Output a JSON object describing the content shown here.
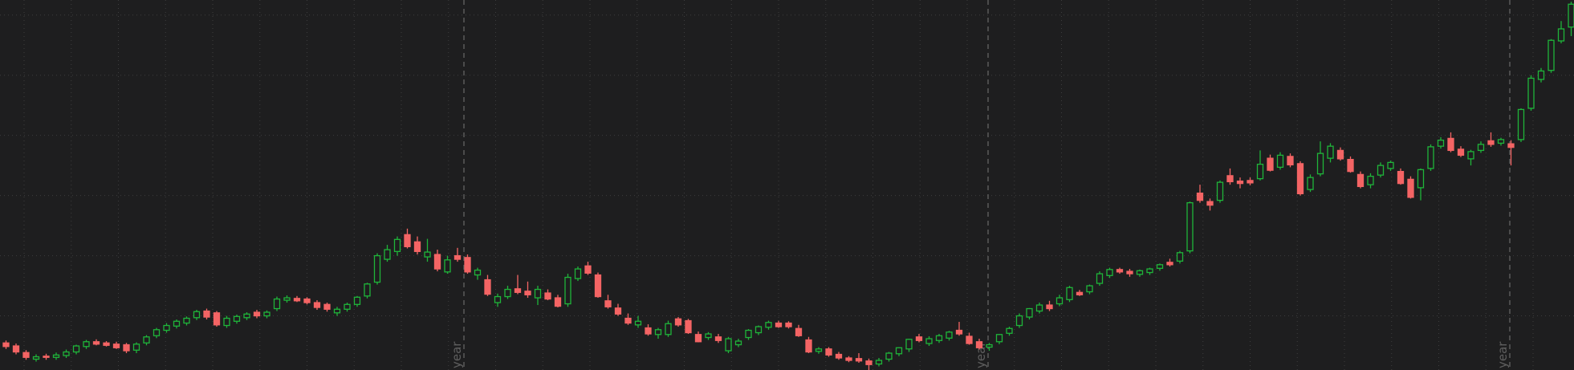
{
  "chart_data": {
    "type": "candlestick",
    "categories": [
      null,
      null,
      null,
      null,
      null,
      null,
      null,
      null,
      null,
      null,
      null,
      null,
      null,
      null,
      null,
      null,
      null,
      null,
      null,
      null,
      null,
      null,
      null,
      null,
      null,
      null,
      null,
      null,
      null,
      null,
      null,
      null,
      null,
      null,
      null,
      null,
      null,
      null,
      null,
      null,
      null,
      null,
      null,
      null,
      null,
      null,
      null,
      null,
      null,
      null,
      null,
      null,
      null,
      null,
      null,
      null,
      null,
      null,
      null,
      null,
      null,
      null,
      null,
      null,
      null,
      null,
      null,
      null,
      null,
      null,
      null,
      null,
      null,
      null,
      null,
      null,
      null,
      null,
      null,
      null,
      null,
      null,
      null,
      null,
      null,
      null,
      null,
      null,
      null,
      null,
      null,
      null,
      null,
      null,
      null,
      null,
      null,
      null,
      null,
      null,
      null,
      null,
      null,
      null,
      null,
      null,
      null,
      null,
      null,
      null,
      null,
      null,
      null,
      null,
      null,
      null,
      null,
      null,
      null,
      null,
      null,
      null,
      null,
      null,
      null,
      null,
      null,
      null,
      null,
      null,
      null,
      null,
      null,
      null,
      null,
      null,
      null,
      null,
      null,
      null,
      null,
      null,
      null,
      null,
      null,
      null,
      null,
      null,
      null,
      null,
      null,
      null,
      null,
      null,
      null,
      null,
      null
    ],
    "open": [
      55,
      50,
      39,
      28,
      33,
      31,
      34,
      40,
      49,
      57,
      55,
      53,
      52,
      43,
      55,
      67,
      76,
      83,
      88,
      97,
      108,
      105,
      84,
      91,
      97,
      106,
      100,
      112,
      126,
      129,
      128,
      122,
      119,
      105,
      111,
      119,
      133,
      156,
      194,
      207,
      235,
      223,
      198,
      202,
      173,
      200,
      197,
      168,
      160,
      122,
      132,
      145,
      141,
      130,
      138,
      130,
      120,
      162,
      183,
      168,
      125,
      113,
      96,
      85,
      80,
      69,
      69,
      95,
      92,
      69,
      64,
      65,
      42,
      52,
      64,
      72,
      81,
      88,
      88,
      79,
      60,
      41,
      45,
      36,
      30,
      29,
      25,
      20,
      28,
      37,
      45,
      65,
      54,
      59,
      63,
      76,
      66,
      57,
      48,
      57,
      71,
      84,
      98,
      108,
      118,
      120,
      127,
      139,
      140,
      154,
      167,
      177,
      174,
      169,
      172,
      179,
      189,
      191,
      208,
      304,
      290,
      292,
      333,
      324,
      325,
      328,
      362,
      347,
      365,
      353,
      310,
      336,
      362,
      375,
      360,
      335,
      318,
      334,
      345,
      340,
      327,
      313,
      345,
      382,
      395,
      377,
      361,
      375,
      391,
      387,
      386,
      393,
      445,
      493,
      508,
      557,
      580
    ],
    "high": [
      59,
      54,
      43,
      36,
      37,
      39,
      44,
      52,
      60,
      61,
      58,
      57,
      55,
      56,
      68,
      80,
      88,
      94,
      99,
      110,
      112,
      108,
      100,
      102,
      106,
      110,
      109,
      132,
      134,
      133,
      131,
      126,
      122,
      115,
      122,
      133,
      155,
      204,
      218,
      232,
      245,
      232,
      228,
      210,
      200,
      213,
      202,
      180,
      168,
      137,
      150,
      168,
      157,
      150,
      144,
      135,
      170,
      182,
      190,
      172,
      135,
      120,
      104,
      100,
      86,
      80,
      92,
      98,
      95,
      74,
      73,
      70,
      65,
      62,
      78,
      84,
      92,
      92,
      91,
      85,
      65,
      48,
      48,
      40,
      33,
      38,
      29,
      30,
      40,
      48,
      62,
      70,
      66,
      70,
      75,
      90,
      72,
      62,
      55,
      70,
      82,
      104,
      113,
      122,
      125,
      135,
      150,
      143,
      152,
      174,
      180,
      180,
      178,
      177,
      180,
      187,
      195,
      208,
      290,
      318,
      295,
      325,
      345,
      330,
      330,
      375,
      368,
      372,
      370,
      357,
      335,
      390,
      387,
      380,
      365,
      340,
      337,
      355,
      358,
      345,
      332,
      345,
      385,
      397,
      405,
      382,
      376,
      390,
      405,
      396,
      392,
      445,
      500,
      512,
      560,
      590,
      622
    ],
    "low": [
      45,
      36,
      27,
      24,
      27,
      27,
      30,
      36,
      45,
      51,
      49,
      45,
      38,
      38,
      51,
      63,
      72,
      79,
      84,
      93,
      94,
      82,
      80,
      87,
      93,
      96,
      96,
      108,
      122,
      123,
      119,
      110,
      107,
      100,
      107,
      115,
      129,
      152,
      190,
      200,
      212,
      202,
      190,
      174,
      170,
      190,
      170,
      160,
      133,
      115,
      128,
      136,
      130,
      118,
      126,
      114,
      115,
      158,
      168,
      130,
      112,
      100,
      85,
      80,
      67,
      62,
      65,
      82,
      70,
      56,
      60,
      55,
      38,
      48,
      60,
      68,
      77,
      80,
      79,
      65,
      38,
      37,
      32,
      27,
      23,
      22,
      10,
      16,
      24,
      33,
      40,
      56,
      50,
      55,
      59,
      67,
      52,
      44,
      42,
      53,
      67,
      80,
      94,
      104,
      108,
      116,
      123,
      133,
      136,
      150,
      163,
      170,
      165,
      165,
      168,
      175,
      182,
      187,
      204,
      288,
      275,
      288,
      318,
      312,
      317,
      325,
      340,
      343,
      347,
      300,
      306,
      332,
      355,
      358,
      338,
      312,
      312,
      330,
      341,
      318,
      295,
      292,
      341,
      378,
      372,
      364,
      350,
      371,
      381,
      383,
      350,
      389,
      441,
      488,
      504,
      553,
      565
    ],
    "close": [
      49,
      40,
      31,
      32,
      31,
      35,
      40,
      50,
      57,
      53,
      51,
      47,
      42,
      53,
      65,
      77,
      84,
      91,
      96,
      107,
      98,
      85,
      96,
      99,
      103,
      100,
      106,
      128,
      130,
      125,
      122,
      114,
      111,
      111,
      119,
      131,
      153,
      200,
      210,
      227,
      215,
      207,
      206,
      178,
      193,
      194,
      173,
      176,
      136,
      132,
      144,
      139,
      135,
      144,
      128,
      116,
      164,
      178,
      171,
      132,
      115,
      103,
      88,
      91,
      70,
      77,
      87,
      85,
      72,
      57,
      70,
      59,
      62,
      58,
      76,
      82,
      89,
      82,
      82,
      67,
      40,
      45,
      35,
      30,
      26,
      25,
      19,
      26,
      38,
      47,
      61,
      59,
      62,
      67,
      73,
      70,
      54,
      47,
      52,
      69,
      79,
      100,
      112,
      118,
      112,
      130,
      147,
      135,
      150,
      170,
      177,
      173,
      170,
      175,
      178,
      185,
      185,
      205,
      288,
      292,
      284,
      322,
      323,
      320,
      321,
      352,
      342,
      367,
      351,
      303,
      330,
      370,
      382,
      361,
      340,
      315,
      332,
      350,
      355,
      320,
      297,
      343,
      381,
      392,
      375,
      367,
      373,
      385,
      385,
      393,
      380,
      443,
      495,
      507,
      558,
      577,
      618
    ],
    "up_color": "#1fb53a",
    "down_color": "#f46464",
    "ylim": [
      10,
      625
    ],
    "yticks": [
      100,
      200,
      300,
      400,
      500,
      600
    ],
    "grid": true,
    "markers": [
      "year",
      "year",
      "year"
    ]
  }
}
